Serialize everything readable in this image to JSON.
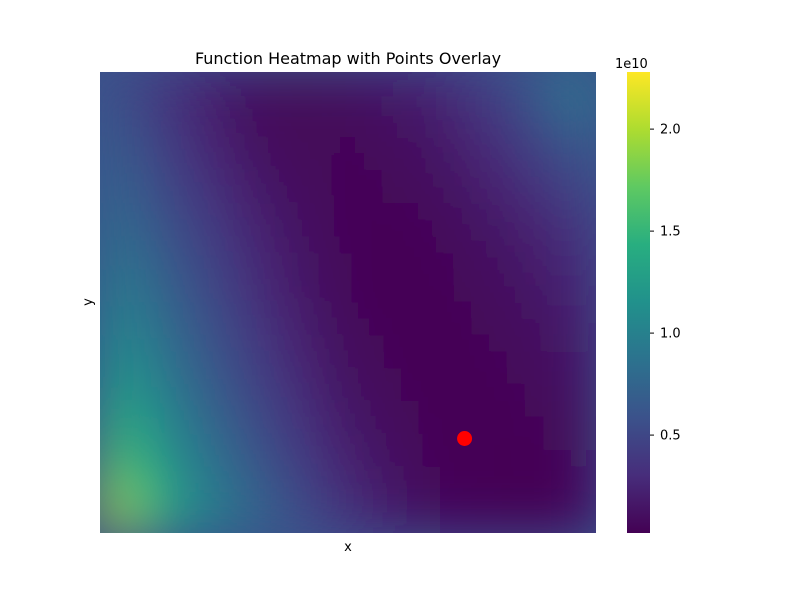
{
  "chart_data": {
    "type": "heatmap",
    "title": "Function Heatmap with Points Overlay",
    "xlabel": "x",
    "ylabel": "y",
    "colormap": "viridis",
    "colorbar": {
      "multiplier": "1e10",
      "ticks": [
        0.5,
        1.0,
        1.5,
        2.0
      ],
      "tick_labels": [
        "0.5",
        "1.0",
        "1.5",
        "2.0"
      ],
      "range": [
        0.02,
        2.28
      ]
    },
    "grid": false,
    "show_x_ticks": false,
    "show_y_ticks": false,
    "x_range": [
      0,
      1
    ],
    "y_range": [
      0,
      1
    ],
    "value_grid": {
      "x": [
        0.0,
        0.167,
        0.333,
        0.5,
        0.667,
        0.833,
        1.0
      ],
      "y_from_top": [
        0.0,
        0.167,
        0.333,
        0.5,
        0.667,
        0.833,
        1.0
      ],
      "values_1e10": [
        [
          0.6,
          0.25,
          0.04,
          0.1,
          0.25,
          0.55,
          1.15
        ],
        [
          0.75,
          0.35,
          0.08,
          0.04,
          0.12,
          0.35,
          0.7
        ],
        [
          0.9,
          0.5,
          0.2,
          0.03,
          0.05,
          0.18,
          0.4
        ],
        [
          1.1,
          0.65,
          0.28,
          0.05,
          0.02,
          0.1,
          0.25
        ],
        [
          1.35,
          0.8,
          0.4,
          0.1,
          0.02,
          0.05,
          0.15
        ],
        [
          1.75,
          1.0,
          0.55,
          0.2,
          0.04,
          0.02,
          0.08
        ],
        [
          2.28,
          1.2,
          0.75,
          0.35,
          0.08,
          0.02,
          0.04
        ]
      ]
    },
    "points": [
      {
        "x": 0.735,
        "y": 0.205,
        "color": "#ff0000"
      }
    ]
  }
}
